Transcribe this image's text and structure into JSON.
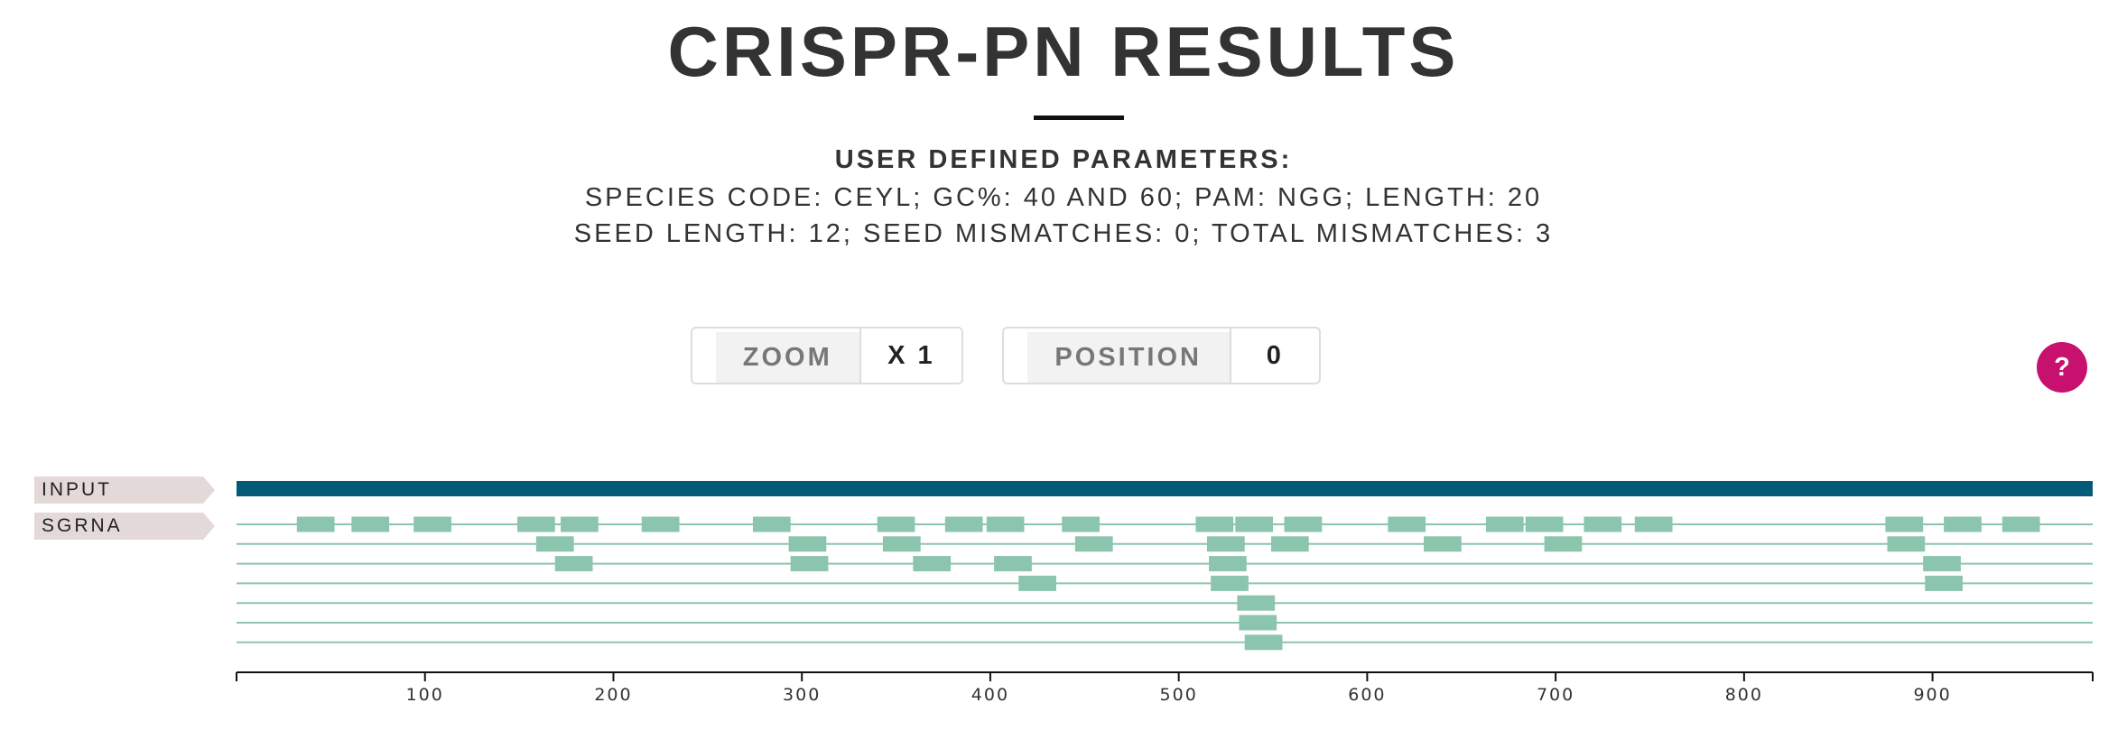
{
  "title": "CRISPR-PN RESULTS",
  "parameters": {
    "heading": "USER DEFINED PARAMETERS:",
    "line1": "SPECIES CODE: CEYL; GC%: 40 AND 60; PAM: NGG; LENGTH: 20",
    "line2": "SEED LENGTH: 12; SEED MISMATCHES: 0; TOTAL MISMATCHES: 3"
  },
  "controls": {
    "zoom": {
      "label": "ZOOM",
      "value": "X 1"
    },
    "position": {
      "label": "POSITION",
      "value": "0"
    }
  },
  "help": {
    "label": "?"
  },
  "tracks": {
    "input_label": "INPUT",
    "sgrna_label": "SGRNA"
  },
  "colors": {
    "input_bar": "#005a78",
    "sgrna": "#8cc5ae",
    "help": "#c8106e"
  },
  "axis": {
    "min": 0,
    "max": 985,
    "ticks": [
      100,
      200,
      300,
      400,
      500,
      600,
      700,
      800,
      900
    ]
  },
  "sgrna": {
    "length": 20,
    "rows": [
      [
        32,
        61,
        94,
        149,
        172,
        215,
        274,
        340,
        376,
        398,
        438,
        509,
        530,
        556,
        611,
        663,
        684,
        715,
        742,
        875,
        906,
        937
      ],
      [
        159,
        293,
        343,
        445,
        515,
        549,
        630,
        694,
        876
      ],
      [
        169,
        294,
        359,
        402,
        516,
        895
      ],
      [
        415,
        517,
        896
      ],
      [
        531
      ],
      [
        532
      ],
      [
        535
      ]
    ]
  }
}
